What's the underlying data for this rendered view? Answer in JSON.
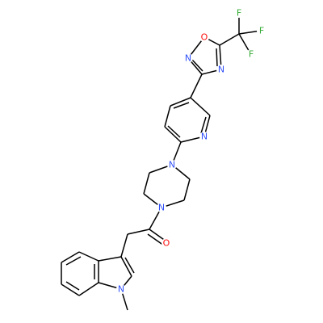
{
  "atoms": [
    {
      "label": "F"
    },
    {
      "label": "F"
    },
    {
      "label": "F"
    },
    {
      "label": "O"
    },
    {
      "label": "N"
    },
    {
      "label": "N"
    },
    {
      "label": "N"
    },
    {
      "label": "N"
    },
    {
      "label": "N"
    },
    {
      "label": "O"
    },
    {
      "label": "N"
    }
  ]
}
